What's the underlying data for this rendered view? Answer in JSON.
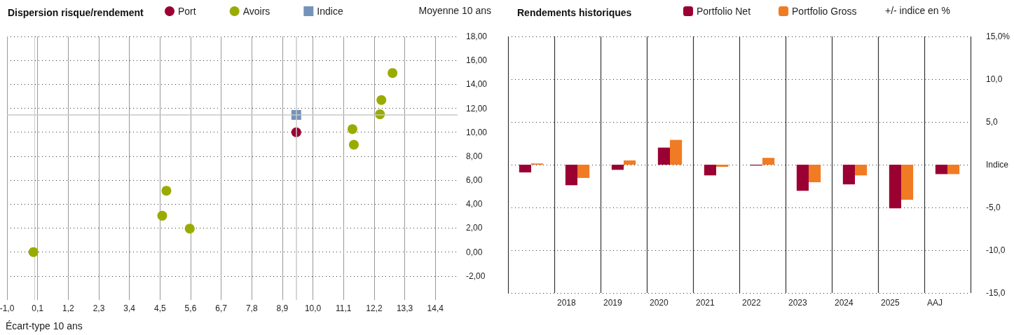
{
  "chart_data": [
    {
      "type": "scatter",
      "title": "Dispersion risque/rendement",
      "xlabel": "Écart-type 10 ans",
      "ylabel": "Moyenne 10 ans",
      "series": [
        {
          "name": "Port",
          "color": "#9b0033",
          "marker": "circle",
          "x": [
            9.4
          ],
          "values": [
            10.0
          ]
        },
        {
          "name": "Avoirs",
          "color": "#9aab00",
          "marker": "circle",
          "x": [
            -0.05,
            4.73,
            4.58,
            5.57,
            11.42,
            11.47,
            12.41,
            12.46,
            12.86
          ],
          "values": [
            0.0,
            5.12,
            3.03,
            1.95,
            10.26,
            8.96,
            11.5,
            12.69,
            14.95
          ]
        },
        {
          "name": "Indice",
          "color": "#7393bb",
          "marker": "square",
          "x": [
            9.4
          ],
          "values": [
            11.45
          ]
        }
      ],
      "xlim": [
        -1.0,
        15.2
      ],
      "ylim": [
        -4,
        18
      ],
      "xticks": [
        {
          "value": -1.0,
          "label": "-1,0"
        },
        {
          "value": 0.1,
          "label": "0,1"
        },
        {
          "value": 1.2,
          "label": "1,2"
        },
        {
          "value": 2.3,
          "label": "2,3"
        },
        {
          "value": 3.4,
          "label": "3,4"
        },
        {
          "value": 4.5,
          "label": "4,5"
        },
        {
          "value": 5.6,
          "label": "5,6"
        },
        {
          "value": 6.7,
          "label": "6,7"
        },
        {
          "value": 7.8,
          "label": "7,8"
        },
        {
          "value": 8.9,
          "label": "8,9"
        },
        {
          "value": 10.0,
          "label": "10,0"
        },
        {
          "value": 11.1,
          "label": "11,1"
        },
        {
          "value": 12.2,
          "label": "12,2"
        },
        {
          "value": 13.3,
          "label": "13,3"
        },
        {
          "value": 14.4,
          "label": "14,4"
        }
      ],
      "yticks": [
        {
          "value": -2,
          "label": "-2,00"
        },
        {
          "value": 0,
          "label": "0,00"
        },
        {
          "value": 2,
          "label": "2,00"
        },
        {
          "value": 4,
          "label": "4,00"
        },
        {
          "value": 6,
          "label": "6,00"
        },
        {
          "value": 8,
          "label": "8,00"
        },
        {
          "value": 10,
          "label": "10,00"
        },
        {
          "value": 12,
          "label": "12,00"
        },
        {
          "value": 14,
          "label": "14,00"
        },
        {
          "value": 16,
          "label": "16,00"
        },
        {
          "value": 18,
          "label": "18,00"
        }
      ],
      "ref_lines": [
        {
          "axis": "x",
          "value": 9.4,
          "color": "#c8c8c8"
        },
        {
          "axis": "y",
          "value": 11.45,
          "color": "#c8c8c8"
        }
      ],
      "grid": true,
      "legend": "top left"
    },
    {
      "type": "bar",
      "title": "Rendements historiques",
      "ylabel": "+/- indice en %",
      "categories": [
        null,
        "2018",
        "2019",
        "2020",
        "2021",
        "2022",
        "2023",
        "2024",
        "2025",
        "AAJ"
      ],
      "series": [
        {
          "name": "Portfolio Net",
          "color": "#9b0033",
          "values": [
            -0.9,
            -2.4,
            -0.6,
            2.0,
            -1.25,
            -0.1,
            -3.05,
            -2.3,
            -5.1,
            -1.1
          ]
        },
        {
          "name": "Portfolio Gross",
          "color": "#f07b22",
          "values": [
            0.15,
            -1.55,
            0.5,
            2.9,
            -0.25,
            0.8,
            -2.05,
            -1.25,
            -4.1,
            -1.1
          ]
        }
      ],
      "ylim": [
        -15,
        15
      ],
      "yticks": [
        {
          "value": -15,
          "label": "-15,0"
        },
        {
          "value": -10,
          "label": "-10,0"
        },
        {
          "value": -5,
          "label": "-5,0"
        },
        {
          "value": 0,
          "label": "Indice"
        },
        {
          "value": 5,
          "label": "5,0"
        },
        {
          "value": 10,
          "label": "10,0"
        },
        {
          "value": 15,
          "label": "15,0%"
        }
      ],
      "grid": true,
      "legend": "top"
    }
  ]
}
